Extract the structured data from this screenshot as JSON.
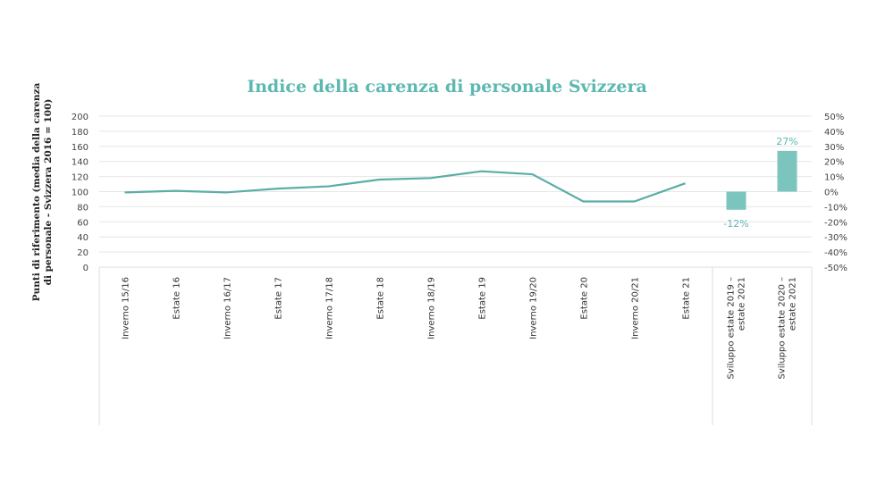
{
  "chart_data": {
    "type": "line+bar",
    "title": "Indice della carenza di personale Svizzera",
    "ylabel": "Punti di riferimento (media della carenza\ndi personale - Svizzera 2016 = 100)",
    "ylim": [
      0,
      200
    ],
    "yticks": [
      "0",
      "20",
      "40",
      "60",
      "80",
      "100",
      "120",
      "140",
      "160",
      "180",
      "200"
    ],
    "y2lim": [
      -50,
      50
    ],
    "y2ticks": [
      "-50%",
      "-40%",
      "-30%",
      "-20%",
      "-10%",
      "0%",
      "10%",
      "20%",
      "30%",
      "40%",
      "50%"
    ],
    "grid": true,
    "line_series": {
      "categories": [
        "Inverno 15/16",
        "Estate 16",
        "Inverno 16/17",
        "Estate 17",
        "Inverno 17/18",
        "Estate 18",
        "Inverno 18/19",
        "Estate 19",
        "Inverno 19/20",
        "Estate 20",
        "Inverno 20/21",
        "Estate 21"
      ],
      "values": [
        99,
        101,
        99,
        104,
        107,
        116,
        118,
        127,
        123,
        87,
        87,
        111
      ]
    },
    "bar_series": {
      "axis": "right",
      "categories": [
        "Sviluppo estate 2019 –\nestate 2021",
        "Sviluppo estate 2020 –\nestate 2021"
      ],
      "values": [
        -12,
        27
      ],
      "labels": [
        "-12%",
        "27%"
      ]
    },
    "colors": {
      "line": "#5aaea6",
      "bar": "#7cc5be",
      "label": "#5cb8b0",
      "grid": "#e6e6e6"
    }
  }
}
